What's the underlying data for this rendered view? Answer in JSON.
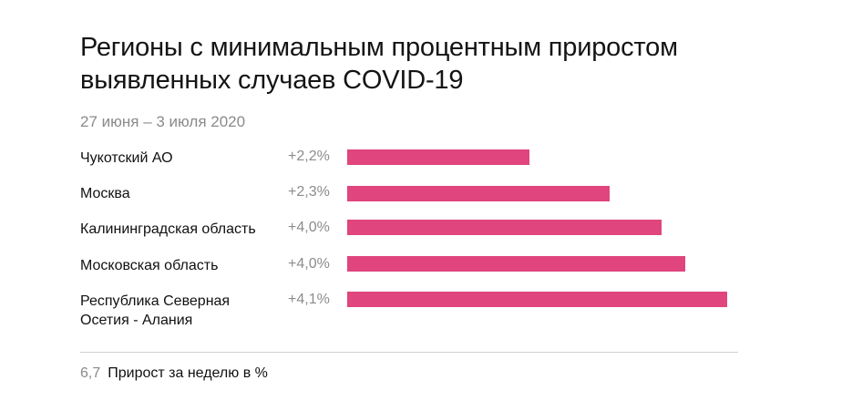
{
  "title_lines": [
    "Регионы с минимальным процентным приростом",
    "выявленных случаев COVID-19"
  ],
  "subtitle": "27 июня – 3 июля 2020",
  "legend": {
    "sample_value": "6,7",
    "label": "Прирост за неделю в %"
  },
  "colors": {
    "bar": "#e0457d",
    "value_text": "#8c8c8c",
    "axis_line": "#cfcfcf"
  },
  "chart_data": {
    "type": "bar",
    "orientation": "horizontal",
    "title": "Регионы с минимальным процентным приростом выявленных случаев COVID-19",
    "subtitle": "27 июня – 3 июля 2020",
    "categories": [
      [
        "Чукотский АО"
      ],
      [
        "Москва"
      ],
      [
        "Калининградская область"
      ],
      [
        "Московская область"
      ],
      [
        "Республика Северная",
        "Осетия - Алания"
      ]
    ],
    "values": [
      2.2,
      2.3,
      4.0,
      4.0,
      4.1
    ],
    "value_labels": [
      "+2,2%",
      "+2,3%",
      "+4,0%",
      "+4,0%",
      "+4,1%"
    ],
    "legend": "Прирост за неделю в %",
    "grid": false
  }
}
